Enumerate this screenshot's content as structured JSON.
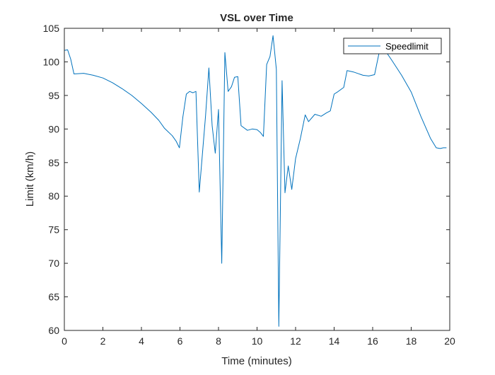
{
  "chart_data": {
    "type": "line",
    "title": "VSL over Time",
    "xlabel": "Time (minutes)",
    "ylabel": "Limit (km/h)",
    "xlim": [
      0,
      20
    ],
    "ylim": [
      60,
      105
    ],
    "x_ticks": [
      "0",
      "2",
      "4",
      "6",
      "8",
      "10",
      "12",
      "14",
      "16",
      "18",
      "20"
    ],
    "y_ticks": [
      "60",
      "65",
      "70",
      "75",
      "80",
      "85",
      "90",
      "95",
      "100",
      "105"
    ],
    "grid": false,
    "legend_position": "top-right",
    "series": [
      {
        "name": "Speedlimit",
        "color": "#0072BD",
        "x": [
          0,
          0.17,
          0.33,
          0.5,
          1.0,
          1.5,
          2.0,
          2.5,
          3.0,
          3.5,
          4.0,
          4.5,
          4.9,
          5.2,
          5.6,
          5.8,
          5.97,
          6.15,
          6.33,
          6.5,
          6.67,
          6.83,
          7.0,
          7.33,
          7.5,
          7.67,
          7.83,
          8.0,
          8.17,
          8.33,
          8.5,
          8.67,
          8.83,
          9.0,
          9.17,
          9.5,
          9.75,
          10.0,
          10.17,
          10.33,
          10.5,
          10.67,
          10.83,
          11.0,
          11.13,
          11.3,
          11.45,
          11.62,
          11.8,
          12.0,
          12.25,
          12.5,
          12.67,
          13.0,
          13.33,
          13.6,
          13.8,
          14.0,
          14.17,
          14.5,
          14.67,
          15.0,
          15.5,
          15.8,
          16.1,
          16.33,
          16.5,
          16.67,
          17.0,
          17.5,
          18.0,
          18.5,
          19.0,
          19.3,
          19.5,
          19.67,
          19.83
        ],
        "values": [
          101.7,
          101.8,
          100.4,
          98.2,
          98.3,
          98.0,
          97.6,
          96.9,
          96.0,
          95.0,
          93.8,
          92.5,
          91.3,
          90.1,
          89.0,
          88.2,
          87.2,
          91.8,
          95.2,
          95.6,
          95.4,
          95.6,
          80.6,
          92.0,
          99.1,
          90.5,
          86.4,
          92.9,
          70.0,
          101.4,
          95.6,
          96.3,
          97.7,
          97.8,
          90.5,
          89.8,
          90.0,
          89.9,
          89.5,
          88.9,
          99.6,
          100.8,
          103.9,
          98.9,
          60.6,
          97.2,
          80.5,
          84.5,
          81.0,
          85.6,
          88.6,
          92.1,
          91.1,
          92.2,
          91.9,
          92.4,
          92.7,
          95.2,
          95.5,
          96.2,
          98.7,
          98.5,
          98.0,
          97.9,
          98.1,
          101.3,
          101.7,
          101.6,
          100.2,
          98.0,
          95.5,
          91.9,
          88.6,
          87.2,
          87.1,
          87.2,
          87.2
        ]
      }
    ]
  }
}
